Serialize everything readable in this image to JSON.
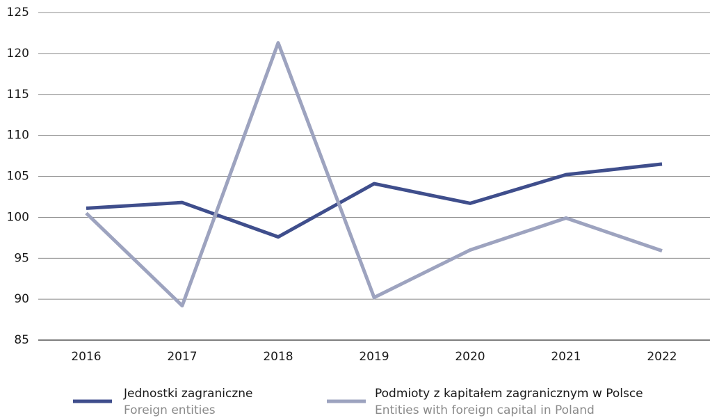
{
  "chart_data": {
    "type": "line",
    "categories": [
      "2016",
      "2017",
      "2018",
      "2019",
      "2020",
      "2021",
      "2022"
    ],
    "series": [
      {
        "name": "Jednostki zagraniczne",
        "name_en": "Foreign entities",
        "color": "#3f4e8c",
        "values": [
          101.1,
          101.8,
          97.6,
          104.1,
          101.7,
          105.2,
          106.5
        ]
      },
      {
        "name": "Podmioty z kapitałem zagranicznym w Polsce",
        "name_en": "Entities with foreign capital in Poland",
        "color": "#9da3bf",
        "values": [
          100.5,
          89.2,
          121.3,
          90.2,
          96.0,
          99.9,
          95.9
        ]
      }
    ],
    "ylim": [
      85,
      125
    ],
    "yticks": [
      85,
      90,
      95,
      100,
      105,
      110,
      115,
      120,
      125
    ],
    "grid": true
  }
}
